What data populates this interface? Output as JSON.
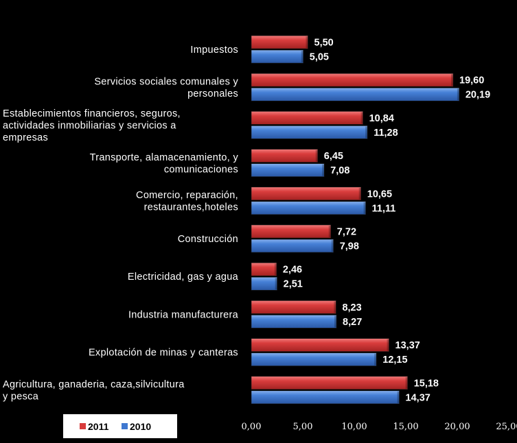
{
  "chart_data": {
    "type": "bar",
    "orientation": "horizontal",
    "categories": [
      [
        "Impuestos"
      ],
      [
        "Servicios sociales comunales y",
        "personales"
      ],
      [
        "Establecimientos financieros, seguros,",
        "actividades inmobiliarias y servicios a",
        "empresas"
      ],
      [
        "Transporte, alamacenamiento, y",
        "comunicaciones"
      ],
      [
        "Comercio, reparación,",
        "restaurantes,hoteles"
      ],
      [
        "Construcción"
      ],
      [
        "Electricidad, gas y agua"
      ],
      [
        "Industria manufacturera"
      ],
      [
        "Explotación de minas  y canteras"
      ],
      [
        "Agricultura, ganaderia, caza,silvicultura",
        "y pesca"
      ]
    ],
    "series": [
      {
        "name": "2011",
        "color": "#d83b3b",
        "values": [
          5.5,
          19.6,
          10.84,
          6.45,
          10.65,
          7.72,
          2.46,
          8.23,
          13.37,
          15.18
        ],
        "labels": [
          "5,50",
          "19,60",
          "10,84",
          "6,45",
          "10,65",
          "7,72",
          "2,46",
          "8,23",
          "13,37",
          "15,18"
        ]
      },
      {
        "name": "2010",
        "color": "#3f78d0",
        "values": [
          5.05,
          20.19,
          11.28,
          7.08,
          11.11,
          7.98,
          2.51,
          8.27,
          12.15,
          14.37
        ],
        "labels": [
          "5,05",
          "20,19",
          "11,28",
          "7,08",
          "11,11",
          "7,98",
          "2,51",
          "8,27",
          "12,15",
          "14,37"
        ]
      }
    ],
    "xlim": [
      0,
      25
    ],
    "x_ticks": [
      "0,00",
      "5,00",
      "10,00",
      "15,00",
      "20,00",
      "25,00"
    ],
    "grid": false,
    "legend_position": "bottom-left",
    "legend": [
      "2011",
      "2010"
    ],
    "title": "",
    "xlabel": "",
    "ylabel": ""
  }
}
